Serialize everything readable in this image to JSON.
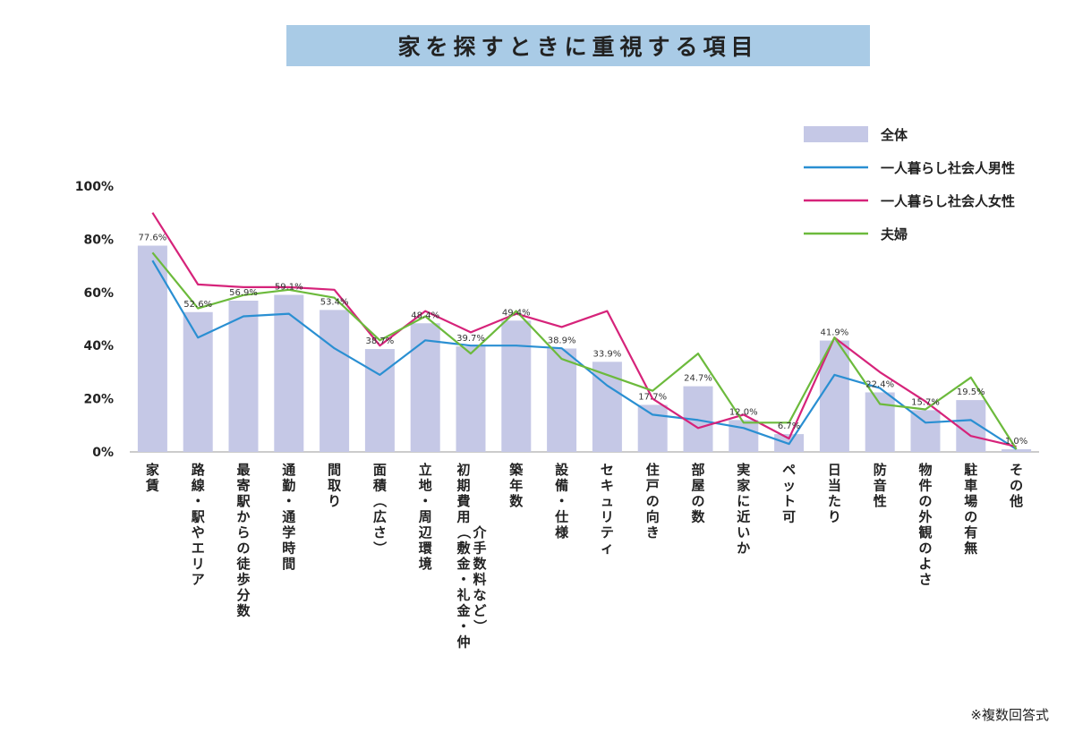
{
  "chart_data": {
    "type": "bar",
    "title": "家を探すときに重視する項目",
    "note": "※複数回答式",
    "categories": [
      "家賃",
      "路線・駅やエリア",
      "最寄駅からの徒歩分数",
      "通勤・通学時間",
      "間取り",
      "面積（広さ）",
      "立地・周辺環境",
      "初期費用（敷金・礼金・仲介手数料など）",
      "築年数",
      "設備・仕様",
      "セキュリティ",
      "住戸の向き",
      "部屋の数",
      "実家に近いか",
      "ペット可",
      "日当たり",
      "防音性",
      "物件の外観のよさ",
      "駐車場の有無",
      "その他"
    ],
    "yticks": [
      "0%",
      "20%",
      "40%",
      "60%",
      "80%",
      "100%"
    ],
    "ylim": [
      0,
      100
    ],
    "colors": {
      "bar": "#c5c8e6",
      "male": "#2a8fd2",
      "female": "#d6237a",
      "couple": "#6cba3c"
    },
    "series": [
      {
        "name": "全体",
        "kind": "bar",
        "values": [
          77.6,
          52.6,
          56.9,
          59.1,
          53.4,
          38.7,
          48.4,
          39.7,
          49.4,
          38.9,
          33.9,
          17.7,
          24.7,
          12.0,
          6.7,
          41.9,
          22.4,
          15.7,
          19.5,
          1.0
        ],
        "labels": [
          "77.6%",
          "52.6%",
          "56.9%",
          "59.1%",
          "53.4%",
          "38.7%",
          "48.4%",
          "39.7%",
          "49.4%",
          "38.9%",
          "33.9%",
          "17.7%",
          "24.7%",
          "12.0%",
          "6.7%",
          "41.9%",
          "22.4%",
          "15.7%",
          "19.5%",
          "1.0%"
        ]
      },
      {
        "name": "一人暮らし社会人男性",
        "kind": "line",
        "key": "male",
        "values": [
          72,
          43,
          51,
          52,
          39,
          29,
          42,
          40,
          40,
          39,
          25,
          14,
          12,
          9,
          3,
          29,
          24,
          11,
          12,
          1
        ]
      },
      {
        "name": "一人暮らし社会人女性",
        "kind": "line",
        "key": "female",
        "values": [
          90,
          63,
          62,
          62,
          61,
          40,
          53,
          45,
          52,
          47,
          53,
          20,
          9,
          14,
          5,
          43,
          30,
          19,
          6,
          2
        ]
      },
      {
        "name": "夫婦",
        "kind": "line",
        "key": "couple",
        "values": [
          75,
          54,
          59,
          61,
          58,
          42,
          51,
          37,
          53,
          35,
          29,
          23,
          37,
          11,
          11,
          43,
          18,
          16,
          28,
          1
        ]
      }
    ]
  }
}
